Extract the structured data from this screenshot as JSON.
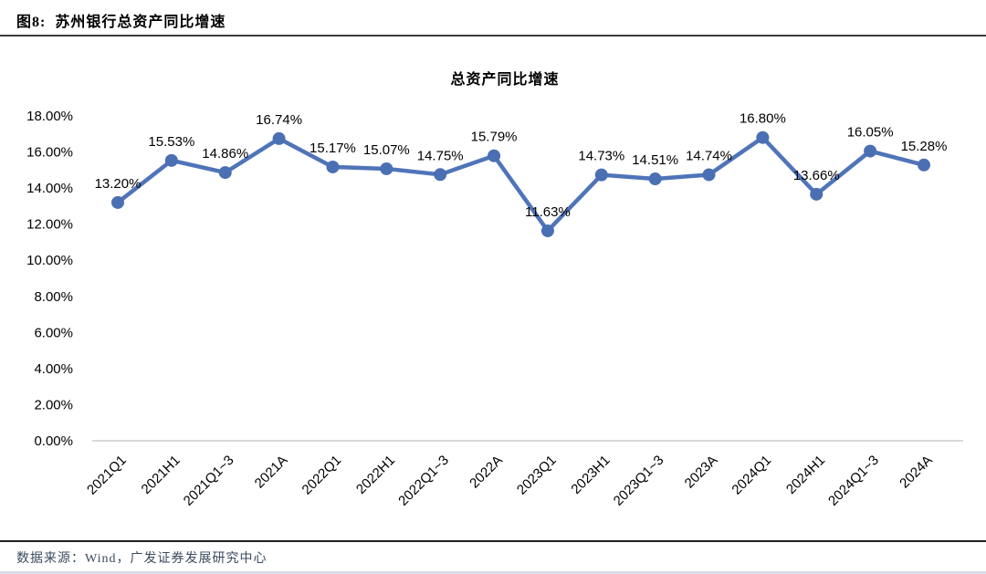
{
  "figure": {
    "label": "图8:",
    "title": "苏州银行总资产同比增速"
  },
  "chart_data": {
    "type": "line",
    "title": "总资产同比增速",
    "categories": [
      "2021Q1",
      "2021H1",
      "2021Q1~3",
      "2021A",
      "2022Q1",
      "2022H1",
      "2022Q1~3",
      "2022A",
      "2023Q1",
      "2023H1",
      "2023Q1~3",
      "2023A",
      "2024Q1",
      "2024H1",
      "2024Q1~3",
      "2024A"
    ],
    "values": [
      13.2,
      15.53,
      14.86,
      16.74,
      15.17,
      15.07,
      14.75,
      15.79,
      11.63,
      14.73,
      14.51,
      14.74,
      16.8,
      13.66,
      16.05,
      15.28
    ],
    "data_labels": [
      "13.20%",
      "15.53%",
      "14.86%",
      "16.74%",
      "15.17%",
      "15.07%",
      "14.75%",
      "15.79%",
      "11.63%",
      "14.73%",
      "14.51%",
      "14.74%",
      "16.80%",
      "13.66%",
      "16.05%",
      "15.28%"
    ],
    "xlabel": "",
    "ylabel": "",
    "ylim": [
      0,
      18
    ],
    "ytick_step": 2,
    "ytick_labels": [
      "0.00%",
      "2.00%",
      "4.00%",
      "6.00%",
      "8.00%",
      "10.00%",
      "12.00%",
      "14.00%",
      "16.00%",
      "18.00%"
    ],
    "grid": false,
    "legend_position": "none",
    "line_color": "#4f74b9",
    "marker_color": "#4a6fb3",
    "axis_line_color": "#d9d9d9",
    "tick_label_color": "#000000",
    "data_label_color": "#000000"
  },
  "footer": {
    "source": "数据来源：Wind，广发证券发展研究中心"
  }
}
